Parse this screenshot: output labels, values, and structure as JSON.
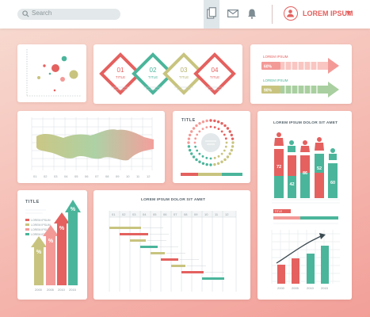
{
  "header": {
    "search_placeholder": "Search",
    "user_name": "LOREM IPSUM",
    "icons": [
      "search-icon",
      "documents-icon",
      "mail-icon",
      "bell-icon",
      "user-icon",
      "caret-down-icon"
    ]
  },
  "colors": {
    "coral": "#e4615f",
    "teal": "#4bb59b",
    "olive": "#c8c47f",
    "pink": "#f39a97"
  },
  "steps": [
    {
      "num": "01",
      "label": "TITLE"
    },
    {
      "num": "02",
      "label": "TITLE"
    },
    {
      "num": "03",
      "label": "TITLE"
    },
    {
      "num": "04",
      "label": "TITLE"
    }
  ],
  "progress_arrows": {
    "items": [
      {
        "label": "LOREM IPSUM",
        "value": "60%"
      },
      {
        "label": "LOREM IPSUM",
        "value": "90%"
      }
    ]
  },
  "area_chart": {
    "x_ticks": [
      "01",
      "02",
      "03",
      "04",
      "05",
      "06",
      "07",
      "08",
      "09",
      "10",
      "11",
      "12"
    ]
  },
  "donut_card": {
    "title": "TITLE"
  },
  "people_chart": {
    "title": "LOREM IPSUM DOLOR SIT AMET",
    "values": [
      "72",
      "42",
      "86",
      "52",
      "60"
    ],
    "legend_label": "TITLE"
  },
  "arrows_card": {
    "title": "TITLE",
    "badges": [
      "%",
      "%",
      "%",
      "%"
    ],
    "legend": [
      "LOREM IPSUM",
      "LOREM IPSUM",
      "LOREM IPSUM",
      "LOREM IPSUM"
    ],
    "x_labels": [
      "2000",
      "2005",
      "2010",
      "2015"
    ]
  },
  "gantt": {
    "title": "LOREM IPSUM DOLOR SIT AMET",
    "columns": [
      "01",
      "02",
      "03",
      "04",
      "05",
      "06",
      "07",
      "08",
      "09",
      "10",
      "11",
      "12"
    ]
  },
  "bar_trend": {
    "x_labels": [
      "2000",
      "2005",
      "2010",
      "2015"
    ]
  }
}
